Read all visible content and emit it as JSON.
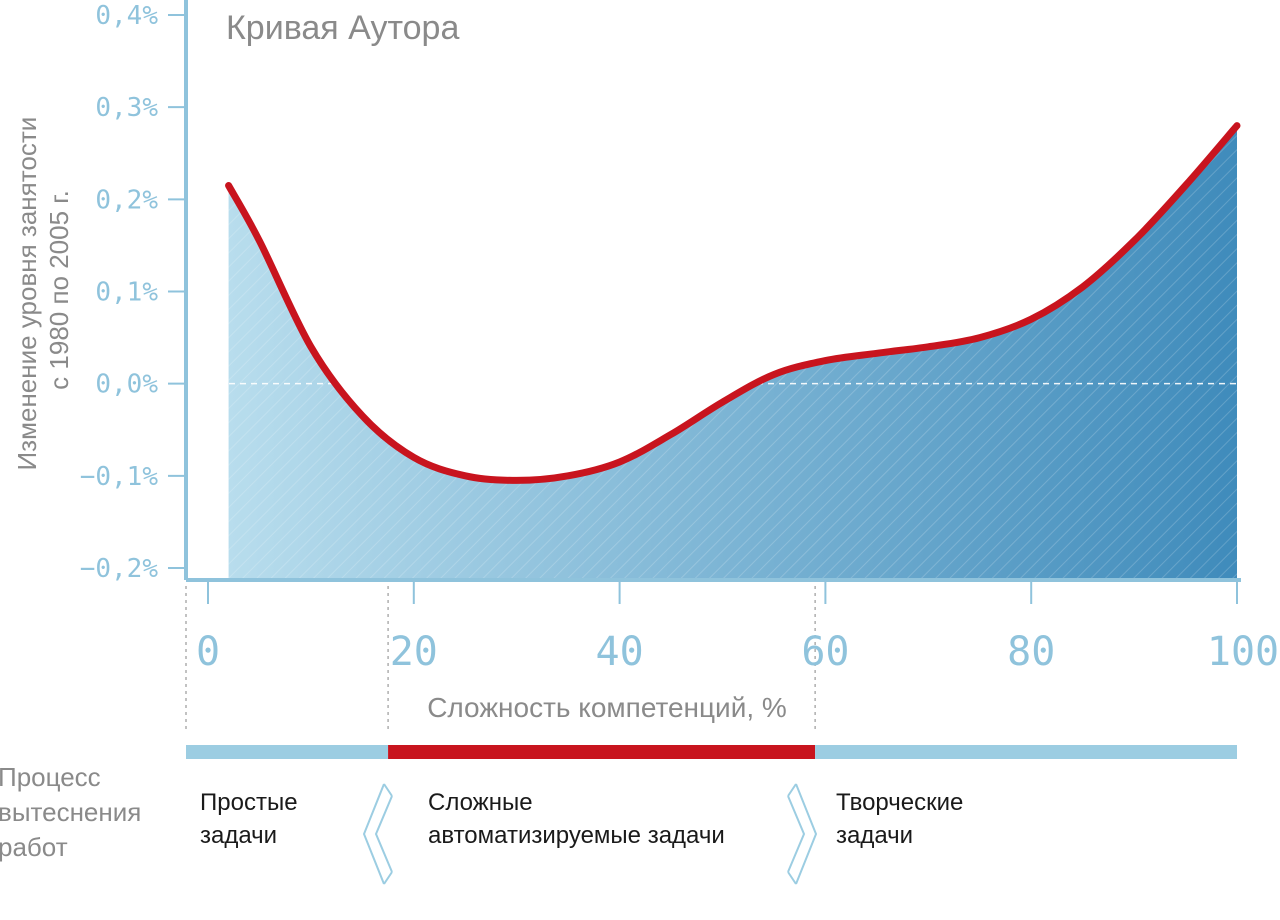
{
  "chart_data": {
    "type": "area",
    "title": "Кривая Аутора",
    "ylabel_lines": [
      "Изменение уровня занятости",
      "с 1980 по 2005 г."
    ],
    "xlabel": "Сложность компетенций, %",
    "xlim": [
      0,
      100
    ],
    "ylim": [
      -0.2,
      0.4
    ],
    "x_ticks": [
      "0",
      "20",
      "40",
      "60",
      "80",
      "100"
    ],
    "y_ticks": [
      "0,4%",
      "0,3%",
      "0,2%",
      "0,1%",
      "0,0%",
      "−0,1%",
      "−0,2%"
    ],
    "grid": false,
    "series": [
      {
        "x": [
          2,
          5,
          10,
          15,
          20,
          25,
          30,
          35,
          40,
          45,
          50,
          55,
          60,
          65,
          70,
          75,
          80,
          85,
          90,
          95,
          100
        ],
        "y": [
          0.215,
          0.155,
          0.04,
          -0.035,
          -0.08,
          -0.1,
          -0.105,
          -0.1,
          -0.085,
          -0.055,
          -0.02,
          0.01,
          0.025,
          0.033,
          0.04,
          0.05,
          0.07,
          0.105,
          0.155,
          0.215,
          0.28
        ]
      }
    ],
    "colors": {
      "curve": "#c8141e",
      "fill_light": "#b8dded",
      "fill_dark": "#3f8bbb",
      "axis": "#8fc3dc",
      "band_blue": "#9ccde2",
      "band_red": "#c8141e"
    },
    "regions": [
      {
        "x_start": 0,
        "x_end": 17.5,
        "band": "blue",
        "label_lines": [
          "Простые",
          "задачи"
        ]
      },
      {
        "x_start": 17.5,
        "x_end": 59,
        "band": "red",
        "label_lines": [
          "Сложные",
          "автоматизируемые задачи"
        ]
      },
      {
        "x_start": 59,
        "x_end": 100,
        "band": "blue",
        "label_lines": [
          "Творческие",
          "задачи"
        ]
      }
    ],
    "process_label_lines": [
      "Процесс",
      "вытеснения",
      "работ"
    ]
  }
}
